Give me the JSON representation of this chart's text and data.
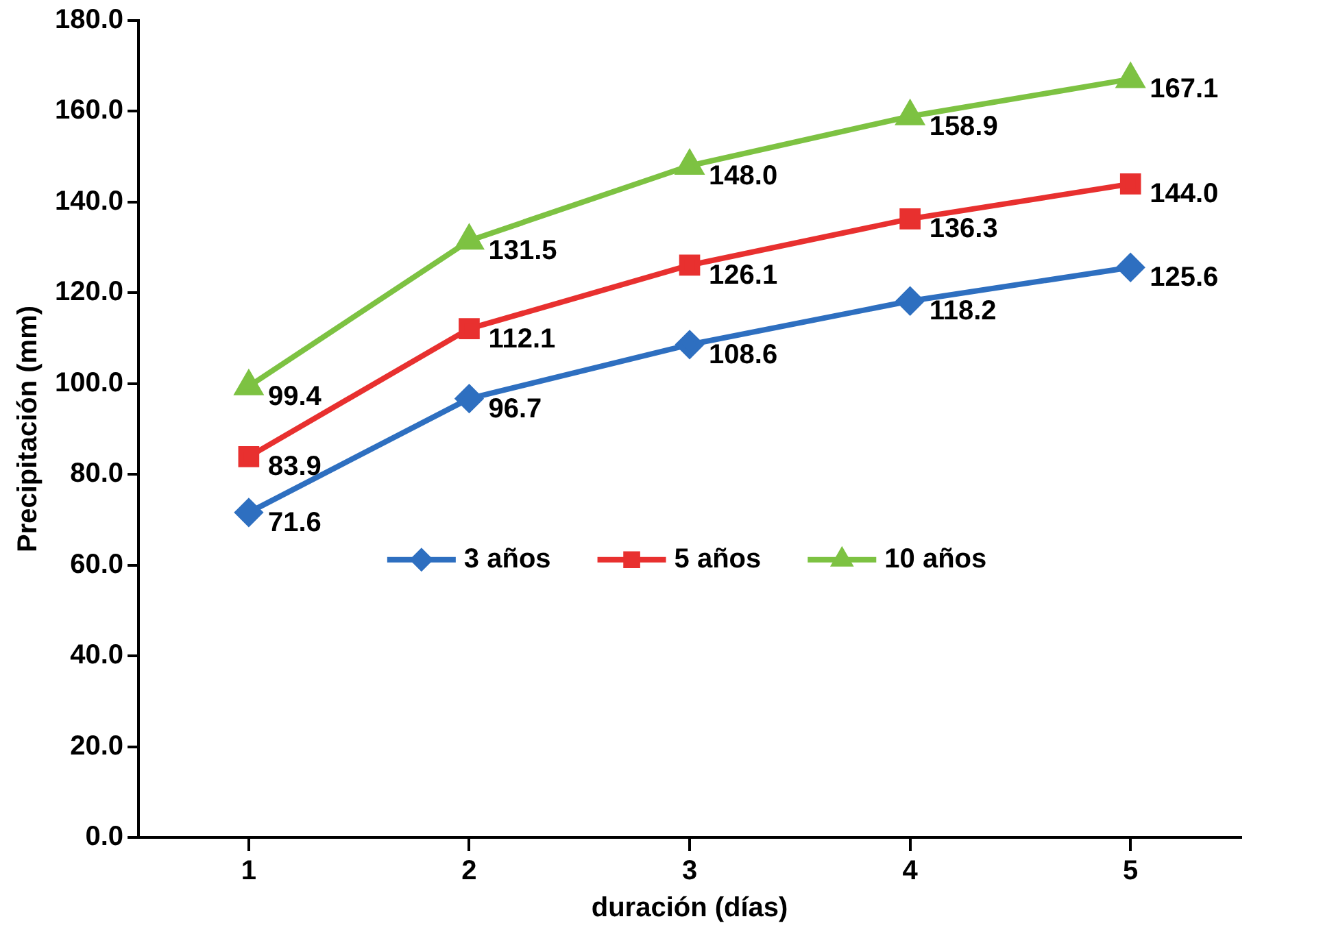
{
  "chart_data": {
    "type": "line",
    "xlabel": "duración (días)",
    "ylabel": "Precipitación (mm)",
    "categories": [
      "1",
      "2",
      "3",
      "4",
      "5"
    ],
    "series": [
      {
        "name": "3 años",
        "color": "#2e6fc0",
        "marker": "diamond",
        "values": [
          71.6,
          96.7,
          108.6,
          118.2,
          125.6
        ],
        "value_labels": [
          "71.6",
          "96.7",
          "108.6",
          "118.2",
          "125.6"
        ]
      },
      {
        "name": "5 años",
        "color": "#e8302f",
        "marker": "square",
        "values": [
          83.9,
          112.1,
          126.1,
          136.3,
          144.0
        ],
        "value_labels": [
          "83.9",
          "112.1",
          "126.1",
          "136.3",
          "144.0"
        ]
      },
      {
        "name": "10 años",
        "color": "#7dc242",
        "marker": "triangle",
        "values": [
          99.4,
          131.5,
          148.0,
          158.9,
          167.1
        ],
        "value_labels": [
          "99.4",
          "131.5",
          "148.0",
          "158.9",
          "167.1"
        ]
      }
    ],
    "ylim": [
      0,
      180
    ],
    "yticks": [
      {
        "value": 0,
        "label": "0.0"
      },
      {
        "value": 20,
        "label": "20.0"
      },
      {
        "value": 40,
        "label": "40.0"
      },
      {
        "value": 60,
        "label": "60.0"
      },
      {
        "value": 80,
        "label": "80.0"
      },
      {
        "value": 100,
        "label": "100.0"
      },
      {
        "value": 120,
        "label": "120.0"
      },
      {
        "value": 140,
        "label": "140.0"
      },
      {
        "value": 160,
        "label": "160.0"
      },
      {
        "value": 180,
        "label": "180.0"
      }
    ],
    "grid": false,
    "legend": "center",
    "line_style": "solid"
  }
}
